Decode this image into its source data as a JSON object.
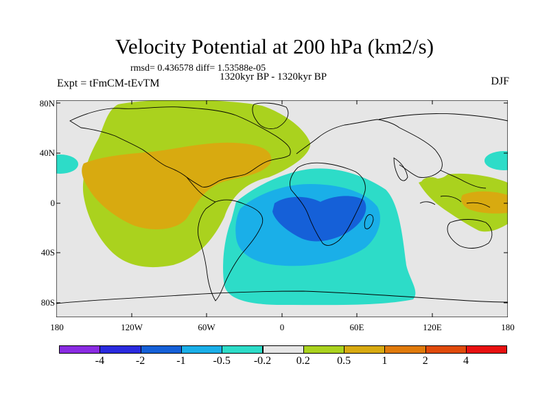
{
  "title": "Velocity Potential at 200 hPa (km2/s)",
  "stats": "rmsd= 0.436578 diff= 1.53588e-05",
  "period": "1320kyr BP - 1320kyr BP",
  "experiment": "Expt = tFmCM-tEvTM",
  "season": "DJF",
  "lat_labels": [
    "80N",
    "40N",
    "0",
    "40S",
    "80S"
  ],
  "lon_labels": [
    "180",
    "120W",
    "60W",
    "0",
    "60E",
    "120E",
    "180"
  ],
  "colorbar": {
    "colors": [
      "#8a2be2",
      "#2a2adf",
      "#1560d8",
      "#1aafe8",
      "#2ddcc8",
      "#e6e6e6",
      "#aad21e",
      "#d8aa10",
      "#e07a0a",
      "#e04a0a",
      "#e81010"
    ],
    "labels": [
      "-4",
      "-2",
      "-1",
      "-0.5",
      "-0.2",
      "0.2",
      "0.5",
      "1",
      "2",
      "4"
    ]
  },
  "colors": {
    "background_field": "#e6e6e6",
    "level_0.2": "#aad21e",
    "level_0.5": "#d8aa10",
    "level_-0.2": "#2ddcc8",
    "level_-0.5": "#1aafe8",
    "level_-1": "#1560d8",
    "coastline": "#000000"
  }
}
